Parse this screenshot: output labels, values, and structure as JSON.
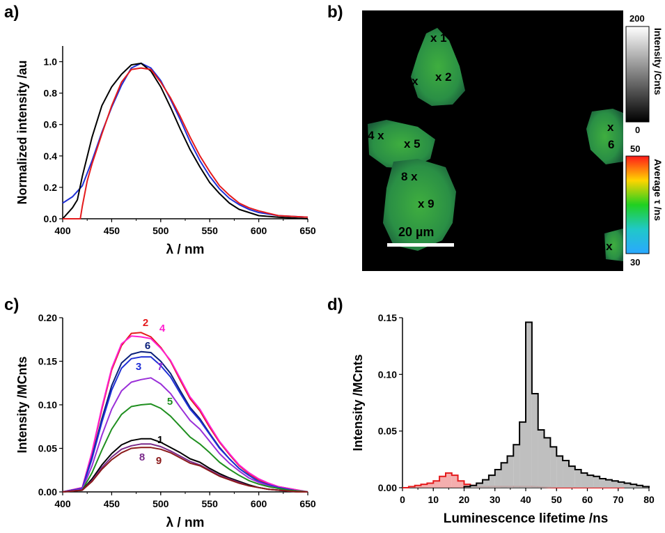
{
  "panels": {
    "a": "a)",
    "b": "b)",
    "c": "c)",
    "d": "d)"
  },
  "colors": {
    "black": "#000000",
    "red": "#e41a1c",
    "blue": "#1f2fd6",
    "magenta": "#ff1fd0",
    "navy": "#0a1f7a",
    "purple": "#9a2fd8",
    "violet": "#7a33cc",
    "green": "#1f8f1f",
    "darkred": "#8b1a1a",
    "plum": "#7a2a8a",
    "label_yellow": "#ffe800",
    "hist_gray": "#b8b8b8",
    "hist_red_fill": "#f2a0a0"
  },
  "chart_data": [
    {
      "panel": "a)",
      "type": "line",
      "xlabel": "λ / nm",
      "ylabel": "Normalized intensity /au",
      "xlim": [
        400,
        650
      ],
      "ylim": [
        0,
        1.1
      ],
      "xticks": [
        400,
        450,
        500,
        550,
        600,
        650
      ],
      "yticks": [
        0.0,
        0.2,
        0.4,
        0.6,
        0.8,
        1.0
      ],
      "xticklabels": [
        "400",
        "450",
        "500",
        "550",
        "600",
        "650"
      ],
      "yticklabels": [
        "0.0",
        "0.2",
        "0.4",
        "0.6",
        "0.8",
        "1.0"
      ],
      "series": [
        {
          "color": "#1f2fd6",
          "x": [
            400,
            410,
            420,
            430,
            440,
            450,
            460,
            470,
            480,
            490,
            500,
            510,
            520,
            530,
            540,
            550,
            560,
            570,
            580,
            590,
            600,
            620,
            650
          ],
          "y": [
            0.1,
            0.14,
            0.21,
            0.37,
            0.55,
            0.71,
            0.85,
            0.96,
            0.99,
            0.96,
            0.88,
            0.76,
            0.63,
            0.49,
            0.37,
            0.27,
            0.19,
            0.13,
            0.09,
            0.06,
            0.04,
            0.02,
            0.01
          ]
        },
        {
          "color": "#000000",
          "x": [
            400,
            410,
            415,
            420,
            430,
            440,
            450,
            460,
            470,
            480,
            490,
            500,
            510,
            520,
            530,
            540,
            550,
            560,
            570,
            580,
            590,
            600,
            620,
            650
          ],
          "y": [
            0.0,
            0.07,
            0.12,
            0.27,
            0.52,
            0.72,
            0.84,
            0.92,
            0.98,
            0.99,
            0.94,
            0.84,
            0.71,
            0.57,
            0.44,
            0.33,
            0.23,
            0.16,
            0.1,
            0.06,
            0.04,
            0.02,
            0.01,
            0.0
          ]
        },
        {
          "color": "#e41a1c",
          "x": [
            400,
            415,
            418,
            420,
            425,
            430,
            440,
            450,
            460,
            470,
            480,
            490,
            500,
            510,
            520,
            530,
            540,
            550,
            560,
            570,
            580,
            590,
            600,
            620,
            650
          ],
          "y": [
            0.0,
            0.0,
            0.0,
            0.08,
            0.24,
            0.35,
            0.54,
            0.72,
            0.87,
            0.95,
            0.96,
            0.95,
            0.87,
            0.77,
            0.65,
            0.52,
            0.4,
            0.3,
            0.21,
            0.15,
            0.1,
            0.07,
            0.05,
            0.02,
            0.01
          ]
        }
      ]
    },
    {
      "panel": "c)",
      "type": "line",
      "xlabel": "λ / nm",
      "ylabel": "Intensity /MCnts",
      "xlim": [
        400,
        650
      ],
      "ylim": [
        0,
        0.2
      ],
      "xticks": [
        400,
        450,
        500,
        550,
        600,
        650
      ],
      "yticks": [
        0.0,
        0.05,
        0.1,
        0.15,
        0.2
      ],
      "xticklabels": [
        "400",
        "450",
        "500",
        "550",
        "600",
        "650"
      ],
      "yticklabels": [
        "0.00",
        "0.05",
        "0.10",
        "0.15",
        "0.20"
      ],
      "x": [
        400,
        420,
        430,
        440,
        450,
        460,
        470,
        480,
        490,
        500,
        510,
        520,
        530,
        540,
        550,
        560,
        570,
        580,
        590,
        600,
        610,
        620,
        630,
        640,
        650
      ],
      "series": [
        {
          "name": "2",
          "color": "#e41a1c",
          "values": [
            0,
            0.005,
            0.045,
            0.095,
            0.14,
            0.168,
            0.182,
            0.183,
            0.178,
            0.166,
            0.15,
            0.128,
            0.107,
            0.093,
            0.074,
            0.057,
            0.043,
            0.03,
            0.021,
            0.014,
            0.009,
            0.006,
            0.004,
            0.002,
            0.0
          ]
        },
        {
          "name": "4",
          "color": "#ff1fd0",
          "values": [
            0,
            0.005,
            0.046,
            0.097,
            0.142,
            0.17,
            0.179,
            0.178,
            0.176,
            0.165,
            0.151,
            0.13,
            0.109,
            0.095,
            0.076,
            0.058,
            0.044,
            0.031,
            0.022,
            0.015,
            0.01,
            0.006,
            0.004,
            0.002,
            0.0
          ]
        },
        {
          "name": "6",
          "color": "#0a1f7a",
          "values": [
            0,
            0.004,
            0.04,
            0.084,
            0.122,
            0.148,
            0.158,
            0.161,
            0.16,
            0.15,
            0.136,
            0.116,
            0.097,
            0.084,
            0.067,
            0.051,
            0.038,
            0.027,
            0.019,
            0.012,
            0.008,
            0.005,
            0.003,
            0.001,
            0.0
          ]
        },
        {
          "name": "3",
          "color": "#1f2fd6",
          "values": [
            0,
            0.004,
            0.038,
            0.08,
            0.117,
            0.142,
            0.153,
            0.155,
            0.155,
            0.145,
            0.132,
            0.113,
            0.095,
            0.082,
            0.066,
            0.05,
            0.038,
            0.027,
            0.019,
            0.012,
            0.008,
            0.005,
            0.003,
            0.001,
            0.0
          ]
        },
        {
          "name": "7",
          "color": "#9a2fd8",
          "values": [
            0,
            0.003,
            0.03,
            0.065,
            0.095,
            0.116,
            0.126,
            0.129,
            0.131,
            0.124,
            0.113,
            0.097,
            0.082,
            0.072,
            0.058,
            0.044,
            0.033,
            0.024,
            0.016,
            0.011,
            0.007,
            0.004,
            0.002,
            0.001,
            0.0
          ]
        },
        {
          "name": "5",
          "color": "#1f8f1f",
          "values": [
            0,
            0.002,
            0.022,
            0.048,
            0.072,
            0.089,
            0.098,
            0.1,
            0.101,
            0.096,
            0.087,
            0.075,
            0.063,
            0.055,
            0.045,
            0.034,
            0.026,
            0.019,
            0.013,
            0.009,
            0.006,
            0.004,
            0.002,
            0.001,
            0.0
          ]
        },
        {
          "name": "1",
          "color": "#000000",
          "values": [
            0,
            0.002,
            0.015,
            0.031,
            0.044,
            0.054,
            0.059,
            0.061,
            0.061,
            0.057,
            0.051,
            0.045,
            0.038,
            0.034,
            0.027,
            0.021,
            0.016,
            0.012,
            0.008,
            0.005,
            0.003,
            0.002,
            0.001,
            0.0,
            0.0
          ]
        },
        {
          "name": "8",
          "color": "#7a2a8a",
          "values": [
            0,
            0.002,
            0.013,
            0.028,
            0.04,
            0.049,
            0.053,
            0.055,
            0.055,
            0.052,
            0.047,
            0.041,
            0.035,
            0.031,
            0.025,
            0.019,
            0.015,
            0.011,
            0.007,
            0.005,
            0.003,
            0.002,
            0.001,
            0.0,
            0.0
          ]
        },
        {
          "name": "9",
          "color": "#8b1a1a",
          "values": [
            0,
            0.002,
            0.012,
            0.026,
            0.037,
            0.045,
            0.05,
            0.051,
            0.051,
            0.049,
            0.045,
            0.039,
            0.033,
            0.03,
            0.024,
            0.018,
            0.014,
            0.01,
            0.007,
            0.005,
            0.003,
            0.002,
            0.001,
            0.0,
            0.0
          ]
        }
      ]
    },
    {
      "panel": "d)",
      "type": "bar",
      "xlabel": "Luminescence lifetime /ns",
      "ylabel": "Intensity /MCnts",
      "xlim": [
        0,
        80
      ],
      "ylim": [
        0,
        0.15
      ],
      "xticks": [
        0,
        10,
        20,
        30,
        40,
        50,
        60,
        70,
        80
      ],
      "yticks": [
        0.0,
        0.05,
        0.1,
        0.15
      ],
      "xticklabels": [
        "0",
        "10",
        "20",
        "30",
        "40",
        "50",
        "60",
        "70",
        "80"
      ],
      "yticklabels": [
        "0.00",
        "0.05",
        "0.10",
        "0.15"
      ],
      "bin_width": 2,
      "series": [
        {
          "color": "#000000",
          "fill": "#b8b8b8",
          "bin_starts": [
            20,
            22,
            24,
            26,
            28,
            30,
            32,
            34,
            36,
            38,
            40,
            42,
            44,
            46,
            48,
            50,
            52,
            54,
            56,
            58,
            60,
            62,
            64,
            66,
            68,
            70,
            72,
            74,
            76,
            78
          ],
          "values": [
            0.001,
            0.002,
            0.004,
            0.007,
            0.011,
            0.016,
            0.022,
            0.028,
            0.038,
            0.058,
            0.146,
            0.083,
            0.051,
            0.044,
            0.036,
            0.028,
            0.024,
            0.019,
            0.016,
            0.013,
            0.011,
            0.01,
            0.008,
            0.007,
            0.006,
            0.005,
            0.004,
            0.003,
            0.002,
            0.001
          ]
        },
        {
          "color": "#e41a1c",
          "fill": "#f2a0a0",
          "bin_starts": [
            0,
            2,
            4,
            6,
            8,
            10,
            12,
            14,
            16,
            18,
            20,
            22,
            24,
            26,
            28,
            30,
            34,
            40,
            50,
            60,
            70
          ],
          "values": [
            0.0,
            0.001,
            0.002,
            0.003,
            0.004,
            0.006,
            0.01,
            0.013,
            0.011,
            0.006,
            0.003,
            0.002,
            0.001,
            0.001,
            0.001,
            0.001,
            0.001,
            0.001,
            0.0,
            0.0,
            0.0
          ]
        }
      ]
    }
  ],
  "image_panel": {
    "points": [
      {
        "label": "x 1",
        "color": "#ffe800"
      },
      {
        "label": "x 2",
        "color": "#ffe800"
      },
      {
        "label": "3 x",
        "color": "#ffe800"
      },
      {
        "label": "4 x",
        "color": "#ffe800"
      },
      {
        "label": "x 5",
        "color": "#ffe800"
      },
      {
        "label": "x",
        "color": "#ffe800"
      },
      {
        "label": "6",
        "color": "#ffe800"
      },
      {
        "label": "8 x",
        "color": "#ffe800"
      },
      {
        "label": "x 9",
        "color": "#ffe800"
      },
      {
        "label": "7 x",
        "color": "#ffe800"
      }
    ],
    "scalebar_label": "20 µm",
    "intensity_bar": {
      "title": "Intensity /Cnts",
      "max": "200",
      "min": "0"
    },
    "lifetime_bar": {
      "title": "Average τ /ns",
      "max": "50",
      "min": "30"
    }
  }
}
